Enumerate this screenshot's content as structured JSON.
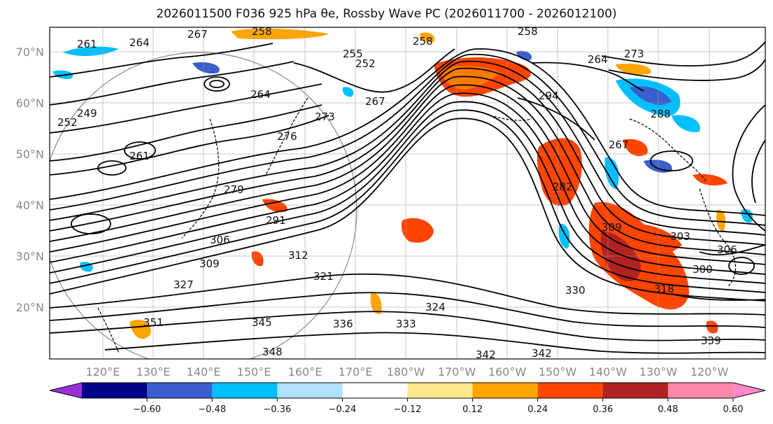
{
  "title": "2026011500 F036 925 hPa θe, Rossby Wave PC (2026011700 - 2026012100)",
  "lat_labels": [
    "70°N",
    "60°N",
    "50°N",
    "40°N",
    "30°N",
    "20°N"
  ],
  "lon_labels": [
    "120°E",
    "130°E",
    "140°E",
    "150°E",
    "160°E",
    "170°E",
    "180°W",
    "170°W",
    "160°W",
    "150°W",
    "140°W",
    "130°W",
    "120°W"
  ],
  "contour_labels": [
    "258",
    "264",
    "267",
    "258",
    "258",
    "255",
    "252",
    "264",
    "264",
    "261",
    "249",
    "252",
    "261",
    "267",
    "273",
    "276",
    "279",
    "291",
    "306",
    "312",
    "309",
    "321",
    "324",
    "327",
    "333",
    "336",
    "345",
    "348",
    "351",
    "342",
    "342",
    "339",
    "330",
    "309",
    "303",
    "306",
    "300",
    "318",
    "273",
    "267",
    "282",
    "288",
    "294"
  ],
  "colorbar": {
    "ticks": [
      "−0.60",
      "−0.48",
      "−0.36",
      "−0.24",
      "−0.12",
      "0.12",
      "0.24",
      "0.36",
      "0.48",
      "0.60"
    ],
    "colors": [
      "#9b30d9",
      "#00008b",
      "#3a5fcd",
      "#00bfff",
      "#b0e2ff",
      "#ffffff",
      "#ffe88c",
      "#ffa500",
      "#ff4500",
      "#b22222",
      "#ff88aa",
      "#ff88cc"
    ]
  }
}
